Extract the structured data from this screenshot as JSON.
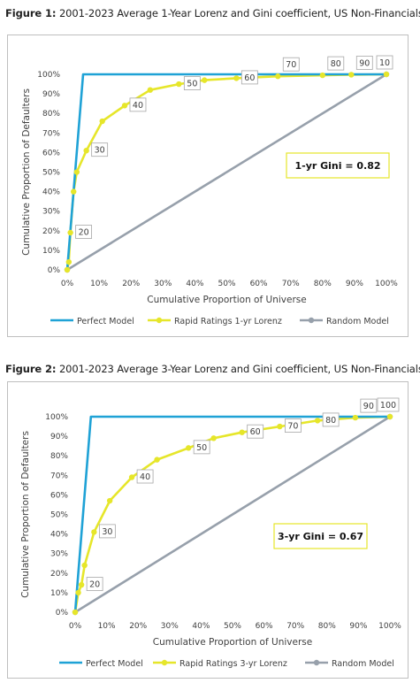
{
  "figures": [
    {
      "caption_prefix": "Figure 1:",
      "caption_text": "2001-2023 Average 1-Year Lorenz and Gini coefficient, US Non-Financials",
      "gini_label": "1-yr Gini = 0.82",
      "colors": {
        "perfect": "#1fa2d6",
        "lorenz": "#e6e62a",
        "random": "#97a0ab",
        "frame": "#bfbfbf"
      },
      "chart_data": {
        "type": "line",
        "xlabel": "Cumulative Proportion of Universe",
        "ylabel": "Cumulative Proportion of Defaulters",
        "xlim": [
          0,
          100
        ],
        "ylim": [
          0,
          100
        ],
        "x_ticks": [
          "0%",
          "10%",
          "20%",
          "30%",
          "40%",
          "50%",
          "60%",
          "70%",
          "80%",
          "90%",
          "100%"
        ],
        "y_ticks": [
          "0%",
          "10%",
          "20%",
          "30%",
          "40%",
          "50%",
          "60%",
          "70%",
          "80%",
          "90%",
          "100%"
        ],
        "legend_position": "bottom",
        "series": [
          {
            "name": "Perfect Model",
            "key": "perfect",
            "markers": false,
            "x": [
              0,
              5,
              100
            ],
            "y": [
              0,
              100,
              100
            ]
          },
          {
            "name": "Rapid Ratings 1-yr Lorenz",
            "key": "lorenz",
            "markers": true,
            "x": [
              0,
              0.5,
              1,
              2,
              3,
              6,
              11,
              18,
              26,
              35,
              43,
              53,
              66,
              80,
              89,
              100
            ],
            "y": [
              0,
              4,
              19,
              40,
              50,
              61,
              76,
              84,
              92,
              95,
              97,
              98,
              99,
              99.5,
              99.8,
              100
            ],
            "point_labels": [
              {
                "label": "20",
                "x": 1,
                "y": 19
              },
              {
                "label": "30",
                "x": 6,
                "y": 61
              },
              {
                "label": "40",
                "x": 18,
                "y": 84
              },
              {
                "label": "50",
                "x": 35,
                "y": 95
              },
              {
                "label": "60",
                "x": 53,
                "y": 98
              },
              {
                "label": "70",
                "x": 66,
                "y": 99
              },
              {
                "label": "80",
                "x": 80,
                "y": 99.5
              },
              {
                "label": "90",
                "x": 89,
                "y": 99.8
              },
              {
                "label": "10",
                "x": 100,
                "y": 100
              }
            ]
          },
          {
            "name": "Random Model",
            "key": "random",
            "markers": true,
            "x": [
              0,
              100
            ],
            "y": [
              0,
              100
            ]
          }
        ]
      }
    },
    {
      "caption_prefix": "Figure 2:",
      "caption_text": "2001-2023 Average 3-Year Lorenz and Gini coefficient, US Non-Financials",
      "gini_label": "3-yr Gini = 0.67",
      "colors": {
        "perfect": "#1fa2d6",
        "lorenz": "#e6e62a",
        "random": "#97a0ab",
        "frame": "#bfbfbf"
      },
      "chart_data": {
        "type": "line",
        "xlabel": "Cumulative Proportion of Universe",
        "ylabel": "Cumulative Proportion of Defaulters",
        "xlim": [
          0,
          100
        ],
        "ylim": [
          0,
          100
        ],
        "x_ticks": [
          "0%",
          "10%",
          "20%",
          "30%",
          "40%",
          "50%",
          "60%",
          "70%",
          "80%",
          "90%",
          "100%"
        ],
        "y_ticks": [
          "0%",
          "10%",
          "20%",
          "30%",
          "40%",
          "50%",
          "60%",
          "70%",
          "80%",
          "90%",
          "100%"
        ],
        "legend_position": "bottom",
        "series": [
          {
            "name": "Perfect Model",
            "key": "perfect",
            "markers": false,
            "x": [
              0,
              5,
              100
            ],
            "y": [
              0,
              100,
              100
            ]
          },
          {
            "name": "Rapid Ratings 3-yr Lorenz",
            "key": "lorenz",
            "markers": true,
            "x": [
              0,
              1,
              2,
              3,
              6,
              11,
              18,
              26,
              36,
              44,
              53,
              65,
              77,
              89,
              100
            ],
            "y": [
              0,
              10,
              14,
              24,
              41,
              57,
              69,
              78,
              84,
              89,
              92,
              95,
              98,
              99.5,
              100
            ],
            "point_labels": [
              {
                "label": "20",
                "x": 2,
                "y": 14
              },
              {
                "label": "30",
                "x": 6,
                "y": 41
              },
              {
                "label": "40",
                "x": 18,
                "y": 69
              },
              {
                "label": "50",
                "x": 36,
                "y": 84
              },
              {
                "label": "60",
                "x": 53,
                "y": 92
              },
              {
                "label": "70",
                "x": 65,
                "y": 95
              },
              {
                "label": "80",
                "x": 77,
                "y": 98
              },
              {
                "label": "90",
                "x": 89,
                "y": 99.5
              },
              {
                "label": "100",
                "x": 100,
                "y": 100
              }
            ]
          },
          {
            "name": "Random Model",
            "key": "random",
            "markers": true,
            "x": [
              0,
              100
            ],
            "y": [
              0,
              100
            ]
          }
        ]
      }
    }
  ]
}
